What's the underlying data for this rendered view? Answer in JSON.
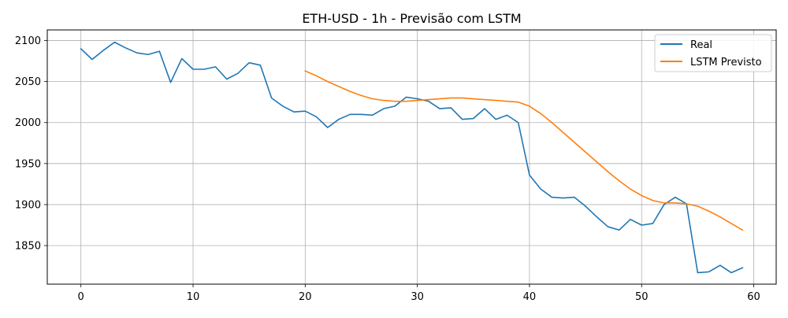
{
  "chart_data": {
    "type": "line",
    "title": "ETH-USD - 1h - Previsão com LSTM",
    "xlabel": "",
    "ylabel": "",
    "xlim": [
      -3,
      62
    ],
    "ylim": [
      1803,
      2113
    ],
    "x_ticks": [
      0,
      10,
      20,
      30,
      40,
      50,
      60
    ],
    "y_ticks": [
      1850,
      1900,
      1950,
      2000,
      2050,
      2100
    ],
    "grid": true,
    "legend_position": "top-right",
    "series": [
      {
        "name": "Real",
        "color": "#1f77b4",
        "x": [
          0,
          1,
          2,
          3,
          4,
          5,
          6,
          7,
          8,
          9,
          10,
          11,
          12,
          13,
          14,
          15,
          16,
          17,
          18,
          19,
          20,
          21,
          22,
          23,
          24,
          25,
          26,
          27,
          28,
          29,
          30,
          31,
          32,
          33,
          34,
          35,
          36,
          37,
          38,
          39,
          40,
          41,
          42,
          43,
          44,
          45,
          46,
          47,
          48,
          49,
          50,
          51,
          52,
          53,
          54,
          55,
          56,
          57,
          58,
          59
        ],
        "y": [
          2090,
          2077,
          2088,
          2098,
          2091,
          2085,
          2083,
          2087,
          2049,
          2078,
          2065,
          2065,
          2068,
          2053,
          2060,
          2073,
          2070,
          2030,
          2020,
          2013,
          2014,
          2007,
          1994,
          2004,
          2010,
          2010,
          2009,
          2017,
          2020,
          2031,
          2029,
          2026,
          2017,
          2018,
          2004,
          2005,
          2017,
          2004,
          2009,
          2000,
          1936,
          1919,
          1909,
          1908,
          1909,
          1898,
          1885,
          1873,
          1869,
          1882,
          1875,
          1877,
          1900,
          1909,
          1901,
          1817,
          1818,
          1826,
          1817,
          1823
        ]
      },
      {
        "name": "LSTM Previsto",
        "color": "#ff7f0e",
        "x": [
          20,
          21,
          22,
          23,
          24,
          25,
          26,
          27,
          28,
          29,
          30,
          31,
          32,
          33,
          34,
          35,
          36,
          37,
          38,
          39,
          40,
          41,
          42,
          43,
          44,
          45,
          46,
          47,
          48,
          49,
          50,
          51,
          52,
          53,
          54,
          55,
          56,
          57,
          58,
          59
        ],
        "y": [
          2063,
          2057,
          2050,
          2044,
          2038,
          2033,
          2029,
          2027,
          2026,
          2026,
          2027,
          2028,
          2029,
          2030,
          2030,
          2029,
          2028,
          2027,
          2026,
          2025,
          2020,
          2011,
          2000,
          1988,
          1976,
          1964,
          1952,
          1940,
          1929,
          1919,
          1911,
          1905,
          1902,
          1902,
          1901,
          1898,
          1892,
          1885,
          1877,
          1869
        ]
      }
    ]
  }
}
